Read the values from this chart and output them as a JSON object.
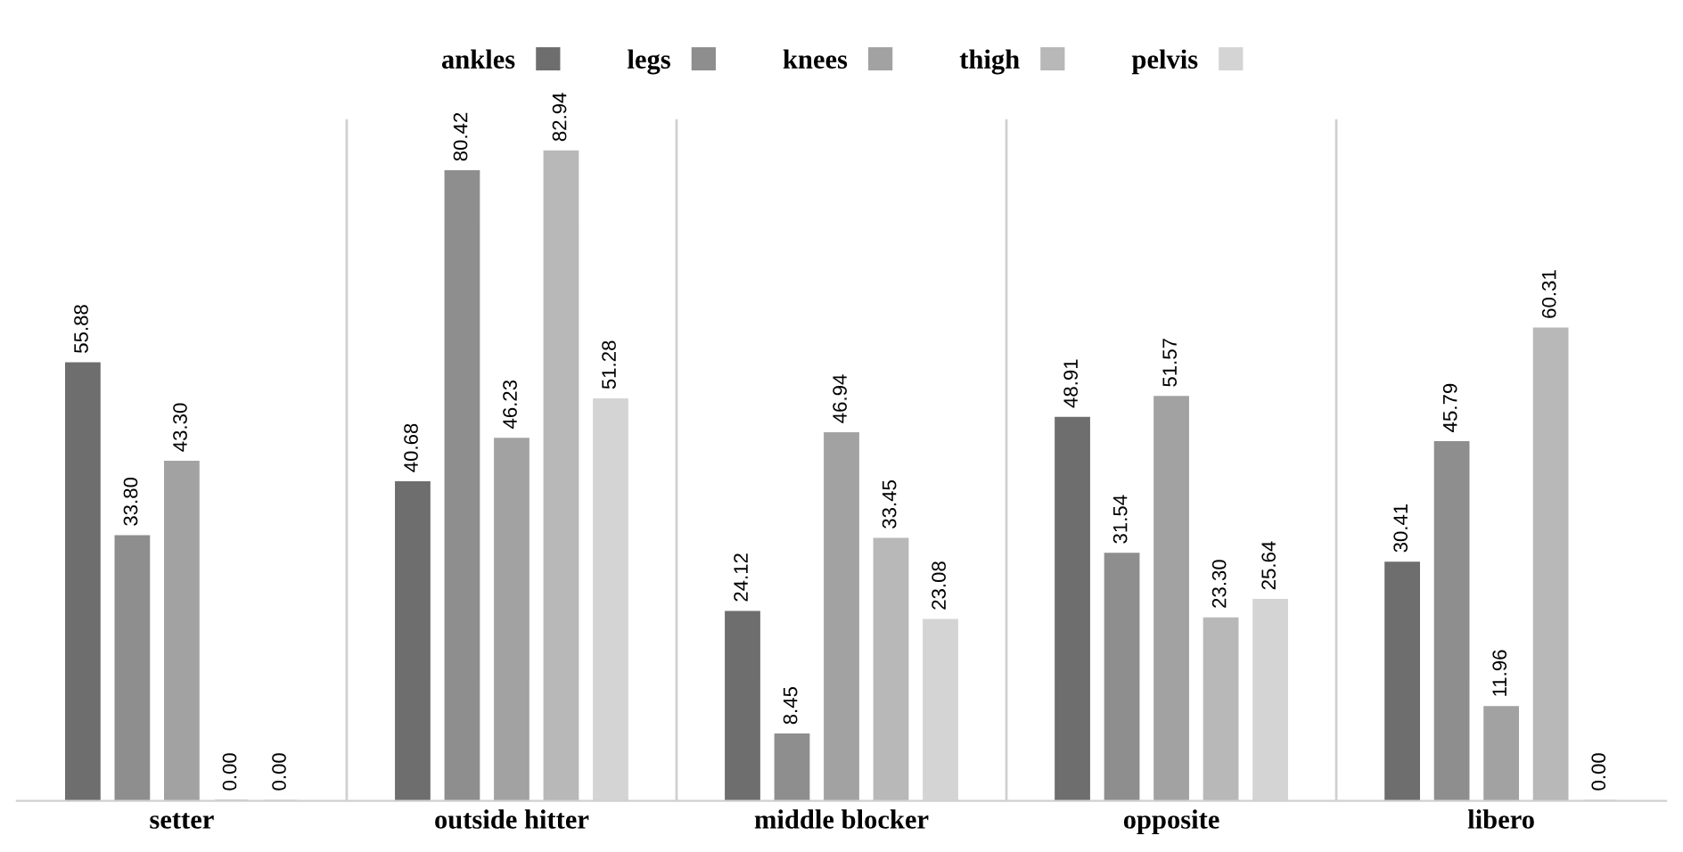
{
  "chart_data": {
    "type": "bar",
    "categories": [
      "setter",
      "outside hitter",
      "middle blocker",
      "opposite",
      "libero"
    ],
    "series": [
      {
        "name": "ankles",
        "color": "#6e6e6e",
        "values": [
          55.88,
          40.68,
          24.12,
          48.91,
          30.41
        ],
        "value_labels": [
          "55.88",
          "40.68",
          "24.12",
          "48.91",
          "30.41"
        ]
      },
      {
        "name": "legs",
        "color": "#8e8e8e",
        "values": [
          33.8,
          80.42,
          8.45,
          31.54,
          45.79
        ],
        "value_labels": [
          "33.80",
          "80.42",
          "8.45",
          "31.54",
          "45.79"
        ]
      },
      {
        "name": "knees",
        "color": "#a2a2a2",
        "values": [
          43.3,
          46.23,
          46.94,
          51.57,
          11.96
        ],
        "value_labels": [
          "43.30",
          "46.23",
          "46.94",
          "51.57",
          "11.96"
        ]
      },
      {
        "name": "thigh",
        "color": "#b8b8b8",
        "values": [
          0.0,
          82.94,
          33.45,
          23.3,
          60.31
        ],
        "value_labels": [
          "0.00",
          "82.94",
          "33.45",
          "23.30",
          "60.31"
        ]
      },
      {
        "name": "pelvis",
        "color": "#d4d4d4",
        "values": [
          0.0,
          51.28,
          23.08,
          25.64,
          0.0
        ],
        "value_labels": [
          "0.00",
          "51.28",
          "23.08",
          "25.64",
          "0.00"
        ]
      }
    ],
    "legend": "top",
    "grid": false
  }
}
